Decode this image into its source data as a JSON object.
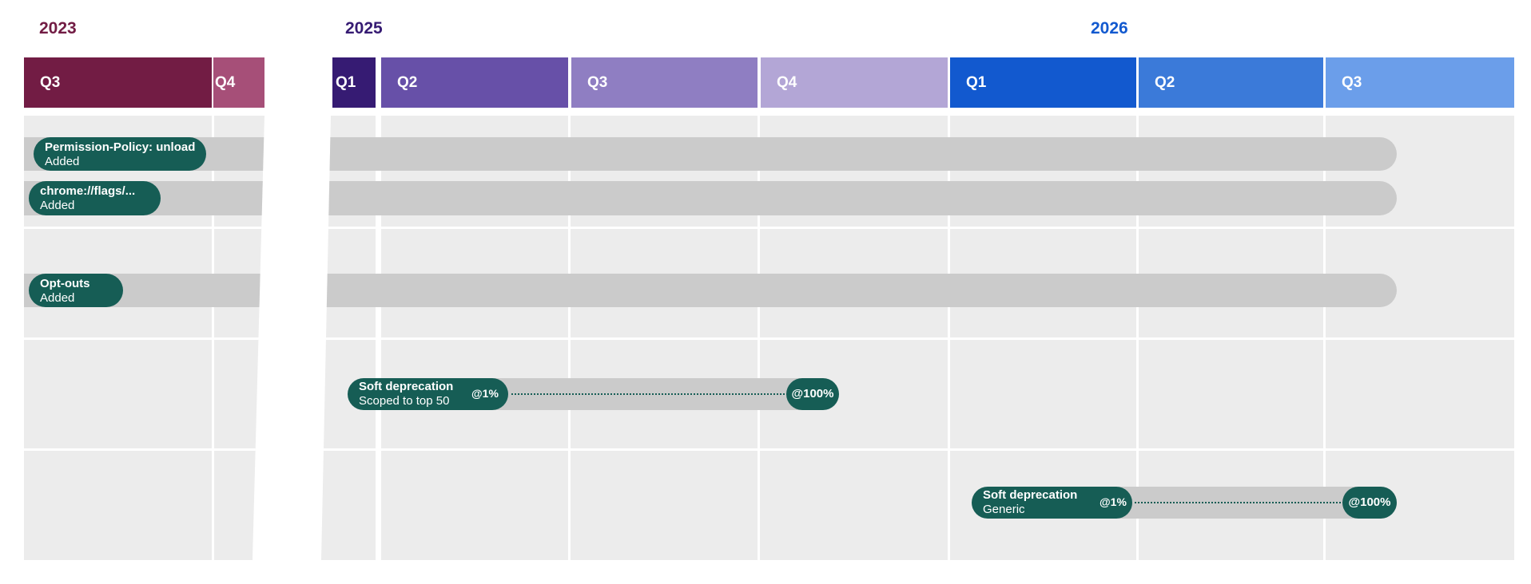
{
  "years": [
    {
      "label": "2023",
      "color": "#721c44"
    },
    {
      "label": "2025",
      "color": "#361b73"
    },
    {
      "label": "2026",
      "color": "#1259cf"
    }
  ],
  "quarters": [
    {
      "label": "Q3",
      "year": "2023",
      "color": "#721c44"
    },
    {
      "label": "Q4",
      "year": "2023",
      "color": "#a64f78"
    },
    {
      "label": "Q1",
      "year": "2025",
      "color": "#361b73"
    },
    {
      "label": "Q2",
      "year": "2025",
      "color": "#6750a8"
    },
    {
      "label": "Q3",
      "year": "2025",
      "color": "#8f7ec2"
    },
    {
      "label": "Q4",
      "year": "2025",
      "color": "#b3a6d6"
    },
    {
      "label": "Q1",
      "year": "2026",
      "color": "#1259cf"
    },
    {
      "label": "Q2",
      "year": "2026",
      "color": "#3b7ad9"
    },
    {
      "label": "Q3",
      "year": "2026",
      "color": "#6b9eea"
    }
  ],
  "items": [
    {
      "title": "Permission-Policy: unload",
      "subtitle": "Added"
    },
    {
      "title": "chrome://flags/...",
      "subtitle": "Added"
    },
    {
      "title": "Opt-outs",
      "subtitle": "Added"
    },
    {
      "title": "Soft deprecation",
      "subtitle": "Scoped to top 50",
      "start_label": "@1%",
      "end_label": "@100%"
    },
    {
      "title": "Soft deprecation",
      "subtitle": "Generic",
      "start_label": "@1%",
      "end_label": "@100%"
    }
  ],
  "colors": {
    "pill": "#165d55",
    "track": "#cbcbcb",
    "background": "#ececec"
  }
}
